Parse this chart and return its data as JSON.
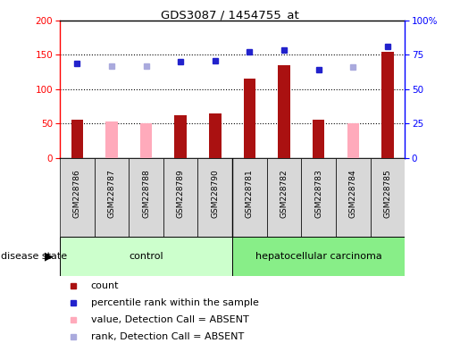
{
  "title": "GDS3087 / 1454755_at",
  "samples": [
    "GSM228786",
    "GSM228787",
    "GSM228788",
    "GSM228789",
    "GSM228790",
    "GSM228781",
    "GSM228782",
    "GSM228783",
    "GSM228784",
    "GSM228785"
  ],
  "groups": [
    "control",
    "control",
    "control",
    "control",
    "control",
    "hepatocellular carcinoma",
    "hepatocellular carcinoma",
    "hepatocellular carcinoma",
    "hepatocellular carcinoma",
    "hepatocellular carcinoma"
  ],
  "bar_values": [
    55,
    0,
    0,
    62,
    65,
    115,
    135,
    55,
    0,
    155
  ],
  "bar_absent_values": [
    0,
    53,
    50,
    0,
    0,
    0,
    0,
    0,
    50,
    0
  ],
  "scatter_present": [
    138,
    0,
    0,
    140,
    142,
    155,
    157,
    128,
    0,
    162
  ],
  "scatter_absent": [
    0,
    133,
    133,
    0,
    0,
    0,
    0,
    0,
    132,
    0
  ],
  "left_ylim": [
    0,
    200
  ],
  "right_ylim": [
    0,
    100
  ],
  "left_yticks": [
    0,
    50,
    100,
    150,
    200
  ],
  "right_yticks": [
    0,
    25,
    50,
    75,
    100
  ],
  "right_yticklabels": [
    "0",
    "25",
    "50",
    "75",
    "100%"
  ],
  "bar_color": "#aa1111",
  "bar_absent_color": "#ffaabb",
  "scatter_present_color": "#2222cc",
  "scatter_absent_color": "#aaaadd",
  "control_bg": "#ccffcc",
  "carcinoma_bg": "#88ee88",
  "gray_bg": "#d8d8d8",
  "dotted_line_color": "#000000",
  "legend_entries": [
    "count",
    "percentile rank within the sample",
    "value, Detection Call = ABSENT",
    "rank, Detection Call = ABSENT"
  ],
  "figsize": [
    5.15,
    3.84
  ],
  "dpi": 100
}
